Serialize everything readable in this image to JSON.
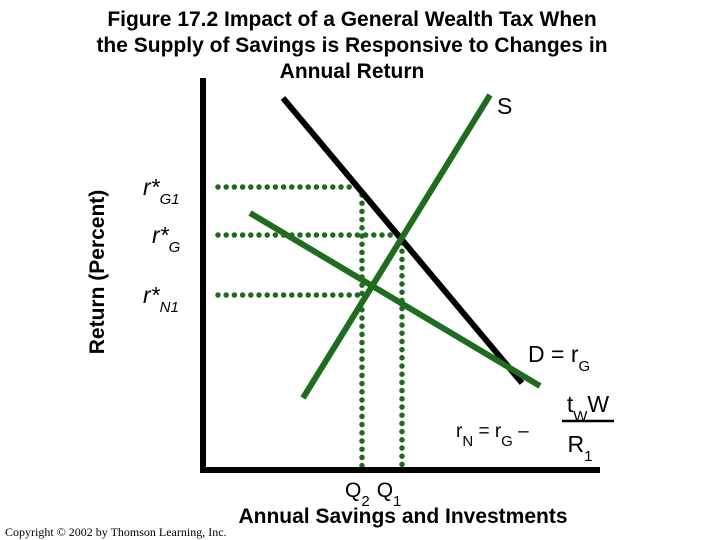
{
  "header": {
    "title_lines": [
      "Figure 17.2 Impact of a General Wealth Tax When",
      "the Supply of Savings is Responsive to Changes in",
      "Annual Return"
    ]
  },
  "axes": {
    "y_label": "Return (Percent)",
    "x_label": "Annual Savings and Investments"
  },
  "curve_labels": {
    "supply": "S",
    "demand": {
      "main": "D = r",
      "sub": "G"
    }
  },
  "return_labels": [
    {
      "main": "r*",
      "sub": "G1"
    },
    {
      "main": "r*",
      "sub": "G"
    },
    {
      "main": "r*",
      "sub": "N1"
    }
  ],
  "net_return": {
    "r": "r",
    "r_sub": "N",
    "eq": " = r",
    "eq_sub": "G",
    "minus": " –",
    "num": "t",
    "num_sub": "W",
    "num_tail": "W",
    "den": "R",
    "den_sub": "1"
  },
  "quantity_labels": [
    {
      "main": "Q",
      "sub": "2"
    },
    {
      "main": "Q",
      "sub": "1"
    }
  ],
  "footer": {
    "copyright": "Copyright © 2002 by Thomson Learning, Inc."
  }
}
